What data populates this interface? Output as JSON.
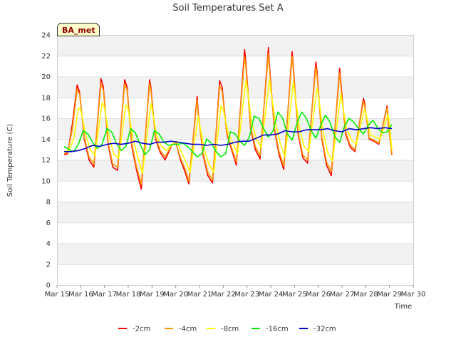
{
  "chart_data": {
    "type": "line",
    "title": "Soil Temperatures Set A",
    "badge": "BA_met",
    "xlabel": "Time",
    "ylabel": "Soil Temperature (C)",
    "ylim": [
      0,
      24
    ],
    "xlim": [
      15,
      30
    ],
    "yticks": [
      0,
      2,
      4,
      6,
      8,
      10,
      12,
      14,
      16,
      18,
      20,
      22,
      24
    ],
    "xticks": [
      {
        "value": 15,
        "label": "Mar 15"
      },
      {
        "value": 16,
        "label": "Mar 16"
      },
      {
        "value": 17,
        "label": "Mar 17"
      },
      {
        "value": 18,
        "label": "Mar 18"
      },
      {
        "value": 19,
        "label": "Mar 19"
      },
      {
        "value": 20,
        "label": "Mar 20"
      },
      {
        "value": 21,
        "label": "Mar 21"
      },
      {
        "value": 22,
        "label": "Mar 22"
      },
      {
        "value": 23,
        "label": "Mar 23"
      },
      {
        "value": 24,
        "label": "Mar 24"
      },
      {
        "value": 25,
        "label": "Mar 25"
      },
      {
        "value": 26,
        "label": "Mar 26"
      },
      {
        "value": 27,
        "label": "Mar 27"
      },
      {
        "value": 28,
        "label": "Mar 28"
      },
      {
        "value": 29,
        "label": "Mar 29"
      },
      {
        "value": 30,
        "label": "Mar 30"
      }
    ],
    "grid": true,
    "legend_position": "bottom",
    "series": [
      {
        "name": "-2cm",
        "color": "#ff0000",
        "x": [
          15.3,
          15.45,
          15.65,
          15.85,
          15.95,
          16.15,
          16.35,
          16.55,
          16.85,
          16.95,
          17.15,
          17.35,
          17.55,
          17.85,
          17.95,
          18.15,
          18.35,
          18.55,
          18.9,
          18.95,
          19.15,
          19.35,
          19.55,
          19.85,
          20.0,
          20.2,
          20.4,
          20.55,
          20.9,
          20.95,
          21.15,
          21.35,
          21.55,
          21.85,
          21.95,
          22.15,
          22.35,
          22.55,
          22.9,
          22.95,
          23.15,
          23.35,
          23.55,
          23.9,
          23.95,
          24.15,
          24.35,
          24.55,
          24.9,
          24.95,
          25.15,
          25.35,
          25.55,
          25.9,
          25.95,
          26.15,
          26.35,
          26.55,
          26.9,
          26.95,
          27.15,
          27.35,
          27.55,
          27.9,
          27.95,
          28.15,
          28.35,
          28.55,
          28.9,
          28.95,
          29.1
        ],
        "y": [
          12.5,
          12.6,
          15.5,
          19.2,
          18.5,
          14.0,
          12.0,
          11.3,
          19.8,
          19.0,
          13.5,
          11.3,
          11.0,
          19.7,
          19.0,
          13.3,
          11.0,
          9.2,
          19.7,
          19.0,
          14.0,
          12.7,
          12.0,
          13.5,
          13.7,
          12.0,
          10.8,
          9.7,
          18.1,
          16.5,
          12.5,
          10.5,
          9.8,
          19.6,
          19.0,
          14.5,
          13.0,
          11.5,
          22.6,
          21.5,
          15.0,
          13.0,
          12.1,
          22.8,
          21.0,
          15.0,
          12.5,
          11.1,
          22.4,
          21.0,
          14.5,
          12.2,
          11.7,
          21.4,
          20.5,
          14.0,
          11.5,
          10.5,
          20.8,
          19.5,
          14.5,
          13.2,
          12.8,
          17.9,
          17.5,
          14.0,
          13.8,
          13.5,
          17.2,
          15.5,
          12.5
        ]
      },
      {
        "name": "-4cm",
        "color": "#ff9900",
        "x": [
          15.3,
          15.45,
          15.65,
          15.85,
          15.95,
          16.15,
          16.35,
          16.55,
          16.85,
          16.95,
          17.15,
          17.35,
          17.55,
          17.85,
          17.95,
          18.15,
          18.35,
          18.55,
          18.9,
          18.95,
          19.15,
          19.35,
          19.55,
          19.85,
          20.0,
          20.2,
          20.4,
          20.55,
          20.9,
          20.95,
          21.15,
          21.35,
          21.55,
          21.85,
          21.95,
          22.15,
          22.35,
          22.55,
          22.9,
          22.95,
          23.15,
          23.35,
          23.55,
          23.9,
          23.95,
          24.15,
          24.35,
          24.55,
          24.9,
          24.95,
          25.15,
          25.35,
          25.55,
          25.9,
          25.95,
          26.15,
          26.35,
          26.55,
          26.9,
          26.95,
          27.15,
          27.35,
          27.55,
          27.9,
          27.95,
          28.15,
          28.35,
          28.55,
          28.9,
          28.95,
          29.1
        ],
        "y": [
          12.6,
          12.7,
          15.0,
          18.8,
          18.3,
          14.2,
          12.3,
          11.6,
          19.3,
          18.7,
          13.7,
          11.6,
          11.3,
          19.3,
          18.7,
          13.6,
          11.3,
          9.7,
          19.3,
          18.7,
          14.2,
          12.9,
          12.3,
          13.5,
          13.7,
          12.2,
          11.1,
          10.0,
          17.7,
          16.3,
          12.7,
          10.8,
          10.1,
          19.1,
          18.6,
          14.6,
          13.2,
          11.8,
          21.9,
          21.0,
          15.2,
          13.3,
          12.4,
          22.2,
          20.6,
          15.2,
          12.8,
          11.4,
          21.9,
          20.6,
          14.7,
          12.5,
          12.0,
          20.9,
          20.1,
          14.2,
          11.8,
          10.9,
          20.3,
          19.1,
          14.7,
          13.4,
          13.0,
          17.6,
          17.2,
          14.1,
          13.9,
          13.6,
          17.0,
          15.4,
          12.6
        ]
      },
      {
        "name": "-8cm",
        "color": "#ffff00",
        "x": [
          15.3,
          15.5,
          15.7,
          15.9,
          16.0,
          16.2,
          16.4,
          16.6,
          16.9,
          17.0,
          17.2,
          17.4,
          17.6,
          17.9,
          18.0,
          18.2,
          18.4,
          18.6,
          18.95,
          19.0,
          19.2,
          19.4,
          19.6,
          19.9,
          20.05,
          20.25,
          20.45,
          20.6,
          20.95,
          21.0,
          21.2,
          21.4,
          21.6,
          21.9,
          22.0,
          22.2,
          22.4,
          22.6,
          22.95,
          23.0,
          23.2,
          23.4,
          23.6,
          23.95,
          24.0,
          24.2,
          24.4,
          24.6,
          24.95,
          25.0,
          25.2,
          25.4,
          25.6,
          25.95,
          26.0,
          26.2,
          26.4,
          26.6,
          26.95,
          27.0,
          27.2,
          27.4,
          27.6,
          27.95,
          28.0,
          28.2,
          28.4,
          28.6,
          28.95,
          29.0,
          29.1
        ],
        "y": [
          12.8,
          12.9,
          14.0,
          17.0,
          16.8,
          14.5,
          13.0,
          12.4,
          17.5,
          17.0,
          14.2,
          12.5,
          12.2,
          17.3,
          16.8,
          14.0,
          12.3,
          10.7,
          17.4,
          16.9,
          14.3,
          13.3,
          12.9,
          13.6,
          13.8,
          12.7,
          11.7,
          10.8,
          16.2,
          15.5,
          13.0,
          11.6,
          10.8,
          17.2,
          16.8,
          14.7,
          13.6,
          12.6,
          19.6,
          19.0,
          15.6,
          14.0,
          13.2,
          19.7,
          18.7,
          15.6,
          13.6,
          12.3,
          19.5,
          18.7,
          15.2,
          13.3,
          12.8,
          18.9,
          18.3,
          14.8,
          12.7,
          11.9,
          18.3,
          17.6,
          15.0,
          13.9,
          13.5,
          16.9,
          16.6,
          14.4,
          14.2,
          14.0,
          16.4,
          15.4,
          13.0
        ]
      },
      {
        "name": "-16cm",
        "color": "#00ee00",
        "x": [
          15.3,
          15.5,
          15.7,
          15.9,
          16.1,
          16.3,
          16.5,
          16.7,
          16.9,
          17.1,
          17.3,
          17.5,
          17.7,
          17.9,
          18.1,
          18.3,
          18.5,
          18.7,
          18.9,
          19.1,
          19.3,
          19.5,
          19.7,
          19.9,
          20.1,
          20.3,
          20.5,
          20.7,
          20.9,
          21.1,
          21.3,
          21.5,
          21.7,
          21.9,
          22.1,
          22.3,
          22.5,
          22.7,
          22.9,
          23.1,
          23.3,
          23.5,
          23.7,
          23.9,
          24.1,
          24.3,
          24.5,
          24.7,
          24.9,
          25.1,
          25.3,
          25.5,
          25.7,
          25.9,
          26.1,
          26.3,
          26.5,
          26.7,
          26.9,
          27.1,
          27.3,
          27.5,
          27.7,
          27.9,
          28.1,
          28.3,
          28.5,
          28.7,
          28.9,
          29.1
        ],
        "y": [
          13.3,
          13.0,
          12.8,
          13.5,
          14.8,
          14.5,
          13.7,
          13.1,
          13.5,
          15.0,
          14.7,
          13.6,
          12.9,
          13.3,
          15.0,
          14.6,
          13.5,
          12.5,
          13.0,
          14.8,
          14.5,
          13.7,
          13.4,
          13.5,
          13.5,
          13.6,
          13.3,
          12.8,
          12.3,
          12.6,
          14.0,
          13.6,
          12.8,
          12.3,
          12.6,
          14.7,
          14.5,
          13.8,
          13.4,
          14.2,
          16.2,
          16.0,
          15.0,
          14.2,
          14.8,
          16.6,
          16.0,
          14.5,
          13.9,
          15.5,
          16.6,
          16.0,
          14.8,
          14.1,
          15.3,
          16.3,
          15.6,
          14.2,
          13.7,
          15.2,
          16.0,
          15.6,
          15.0,
          14.5,
          15.3,
          15.8,
          15.1,
          14.6,
          14.7,
          15.4
        ]
      },
      {
        "name": "-32cm",
        "color": "#0000cc",
        "x": [
          15.3,
          15.6,
          15.9,
          16.2,
          16.5,
          16.8,
          17.1,
          17.4,
          17.7,
          18.0,
          18.3,
          18.6,
          18.9,
          19.2,
          19.5,
          19.8,
          20.1,
          20.4,
          20.7,
          21.0,
          21.3,
          21.6,
          21.9,
          22.2,
          22.5,
          22.8,
          23.1,
          23.4,
          23.7,
          24.0,
          24.3,
          24.6,
          24.9,
          25.2,
          25.5,
          25.8,
          26.1,
          26.4,
          26.7,
          27.0,
          27.3,
          27.6,
          27.9,
          28.2,
          28.5,
          28.8,
          29.1
        ],
        "y": [
          12.8,
          12.8,
          12.9,
          13.1,
          13.4,
          13.3,
          13.5,
          13.6,
          13.5,
          13.6,
          13.8,
          13.6,
          13.5,
          13.7,
          13.7,
          13.8,
          13.7,
          13.6,
          13.5,
          13.5,
          13.4,
          13.5,
          13.4,
          13.5,
          13.7,
          13.8,
          13.8,
          14.1,
          14.4,
          14.4,
          14.5,
          14.8,
          14.7,
          14.7,
          14.9,
          14.9,
          14.9,
          15.0,
          14.8,
          14.7,
          15.0,
          14.9,
          15.0,
          15.1,
          15.0,
          15.1,
          15.0
        ]
      }
    ]
  }
}
